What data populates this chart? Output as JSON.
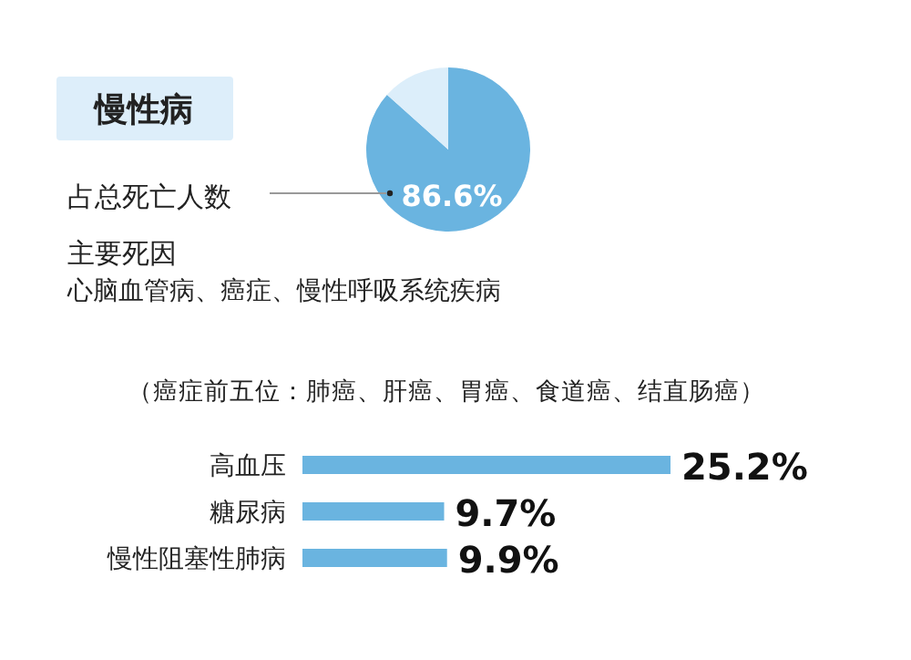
{
  "chart_data": [
    {
      "type": "pie",
      "title": "慢性病",
      "categories": [
        null,
        null
      ],
      "values": [
        86.6,
        13.4
      ],
      "colors": [
        "#6ab4e0",
        "#dceefa"
      ],
      "value_labels": [
        "86.6%",
        null
      ],
      "annotations": [
        "占总死亡人数",
        "主要死因",
        "心脑血管病、癌症、慢性呼吸系统疾病",
        "（癌症前五位：肺癌、肝癌、胃癌、食道癌、结直肠癌）"
      ]
    },
    {
      "type": "bar",
      "orientation": "horizontal",
      "categories": [
        "高血压",
        "糖尿病",
        "慢性阻塞性肺病"
      ],
      "values": [
        25.2,
        9.7,
        9.9
      ],
      "color": "#6ab4e0",
      "value_labels": [
        "25.2%",
        "9.7%",
        "9.9%"
      ]
    }
  ]
}
